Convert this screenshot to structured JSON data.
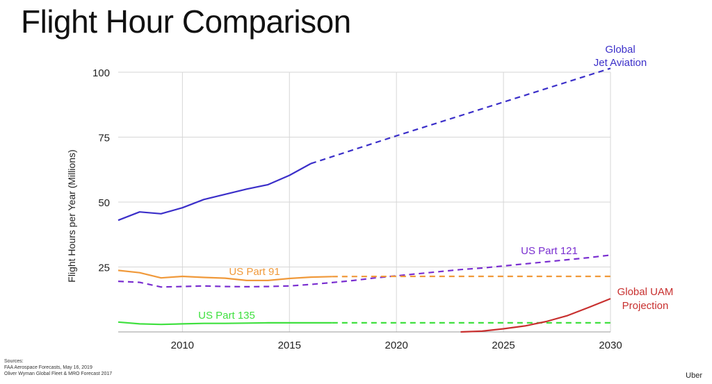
{
  "title": "Flight Hour Comparison",
  "sources": {
    "label": "Sources:",
    "lines": [
      "FAA Aerospace Forecasts, May 16, 2019",
      "Oliver Wyman Global Fleet & MRO Forecast 2017"
    ]
  },
  "brand": "Uber",
  "chart_data": {
    "type": "line",
    "title": "Flight Hour Comparison",
    "xlabel": "",
    "ylabel": "Flight Hours per Year (Millions)",
    "xlim": [
      2007,
      2030
    ],
    "ylim": [
      0,
      100
    ],
    "x_ticks": [
      2010,
      2015,
      2020,
      2025,
      2030
    ],
    "y_ticks": [
      25,
      50,
      75,
      100
    ],
    "grid": true,
    "legend": "inline labels",
    "series": [
      {
        "name": "Global Jet Aviation",
        "label_lines": [
          "Global",
          "Jet Aviation"
        ],
        "color": "#3b2fc9",
        "actual": {
          "x": [
            2007,
            2008,
            2009,
            2010,
            2011,
            2012,
            2013,
            2014,
            2015,
            2016
          ],
          "y": [
            43,
            46.2,
            45.5,
            47.8,
            51,
            53,
            55,
            56.7,
            60.3,
            64.8
          ]
        },
        "projected": {
          "x": [
            2016,
            2020,
            2025,
            2030
          ],
          "y": [
            64.8,
            75.5,
            88.5,
            101.5
          ]
        }
      },
      {
        "name": "US Part 121",
        "label_lines": [
          "US Part 121"
        ],
        "color": "#7a2fd0",
        "actual": {
          "x": [],
          "y": []
        },
        "projected": {
          "x": [
            2007,
            2008,
            2009,
            2010,
            2011,
            2012,
            2013,
            2014,
            2015,
            2016,
            2017,
            2018,
            2019,
            2020,
            2021,
            2022,
            2023,
            2024,
            2025,
            2026,
            2027,
            2028,
            2029,
            2030
          ],
          "y": [
            19.5,
            19.1,
            17.3,
            17.5,
            17.7,
            17.5,
            17.4,
            17.5,
            17.7,
            18.3,
            19,
            19.8,
            20.8,
            21.6,
            22.4,
            23.2,
            24,
            24.6,
            25.4,
            26.2,
            27,
            27.8,
            28.6,
            29.6
          ]
        }
      },
      {
        "name": "US Part 91",
        "label_lines": [
          "US Part 91"
        ],
        "color": "#f0993a",
        "actual": {
          "x": [
            2007,
            2008,
            2009,
            2010,
            2011,
            2012,
            2013,
            2014,
            2015,
            2016,
            2017
          ],
          "y": [
            23.7,
            22.8,
            20.8,
            21.4,
            21,
            20.7,
            19.8,
            19.8,
            20.6,
            21.1,
            21.3
          ]
        },
        "projected": {
          "x": [
            2017,
            2020,
            2025,
            2030
          ],
          "y": [
            21.3,
            21.4,
            21.4,
            21.4
          ]
        }
      },
      {
        "name": "US Part 135",
        "label_lines": [
          "US Part 135"
        ],
        "color": "#3fe03f",
        "actual": {
          "x": [
            2007,
            2008,
            2009,
            2010,
            2011,
            2012,
            2013,
            2014,
            2015,
            2016,
            2017
          ],
          "y": [
            3.8,
            3.1,
            2.9,
            3.1,
            3.3,
            3.3,
            3.4,
            3.5,
            3.5,
            3.5,
            3.5
          ]
        },
        "projected": {
          "x": [
            2017,
            2020,
            2025,
            2030
          ],
          "y": [
            3.5,
            3.5,
            3.5,
            3.5
          ]
        }
      },
      {
        "name": "Global UAM Projection",
        "label_lines": [
          "Global UAM",
          "Projection"
        ],
        "color": "#c8302f",
        "actual": {
          "x": [
            2023,
            2024,
            2025,
            2026,
            2027,
            2028,
            2029,
            2030
          ],
          "y": [
            0,
            0.3,
            1.2,
            2.3,
            4,
            6.3,
            9.5,
            12.8
          ]
        },
        "projected": {
          "x": [],
          "y": []
        }
      }
    ]
  }
}
